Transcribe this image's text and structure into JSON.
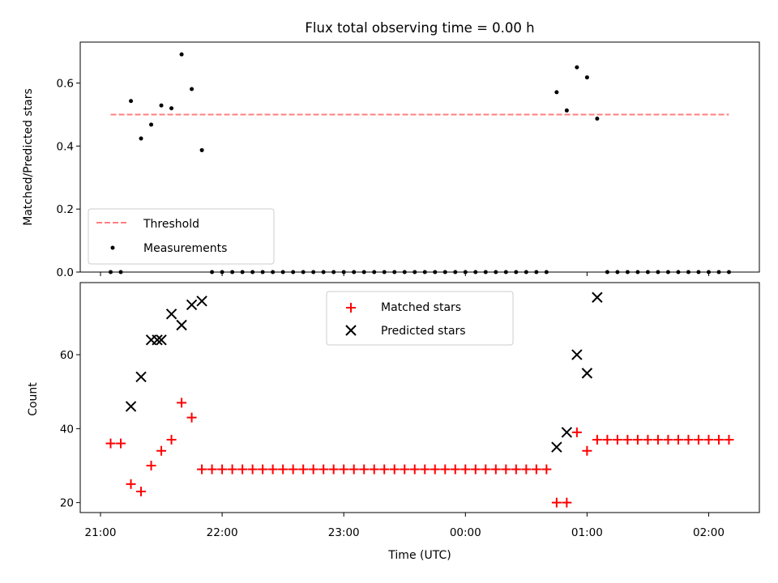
{
  "chart_data": {
    "title": "Flux total observing time = 0.00 h",
    "top": {
      "type": "scatter",
      "ylabel": "Matched/Predicted stars",
      "ylim": [
        0,
        0.73
      ],
      "yticks": [
        0.0,
        0.2,
        0.4,
        0.6
      ],
      "ytick_labels": [
        "0.0",
        "0.2",
        "0.4",
        "0.6"
      ],
      "threshold": {
        "name": "Threshold",
        "value": 0.5,
        "x_start": "21:05",
        "x_end": "02:10",
        "color": "#ff7f7f"
      },
      "measurements": {
        "name": "Measurements",
        "color": "#000000",
        "points": [
          [
            "21:05",
            0.0
          ],
          [
            "21:10",
            0.0
          ],
          [
            "21:15",
            0.543
          ],
          [
            "21:20",
            0.424
          ],
          [
            "21:25",
            0.468
          ],
          [
            "21:30",
            0.529
          ],
          [
            "21:35",
            0.52
          ],
          [
            "21:40",
            0.691
          ],
          [
            "21:45",
            0.581
          ],
          [
            "21:50",
            0.387
          ],
          [
            "21:55",
            0.0
          ],
          [
            "22:00",
            0.0
          ],
          [
            "22:05",
            0.0
          ],
          [
            "22:10",
            0.0
          ],
          [
            "22:15",
            0.0
          ],
          [
            "22:20",
            0.0
          ],
          [
            "22:25",
            0.0
          ],
          [
            "22:30",
            0.0
          ],
          [
            "22:35",
            0.0
          ],
          [
            "22:40",
            0.0
          ],
          [
            "22:45",
            0.0
          ],
          [
            "22:50",
            0.0
          ],
          [
            "22:55",
            0.0
          ],
          [
            "23:00",
            0.0
          ],
          [
            "23:05",
            0.0
          ],
          [
            "23:10",
            0.0
          ],
          [
            "23:15",
            0.0
          ],
          [
            "23:20",
            0.0
          ],
          [
            "23:25",
            0.0
          ],
          [
            "23:30",
            0.0
          ],
          [
            "23:35",
            0.0
          ],
          [
            "23:40",
            0.0
          ],
          [
            "23:45",
            0.0
          ],
          [
            "23:50",
            0.0
          ],
          [
            "23:55",
            0.0
          ],
          [
            "00:00",
            0.0
          ],
          [
            "00:05",
            0.0
          ],
          [
            "00:10",
            0.0
          ],
          [
            "00:15",
            0.0
          ],
          [
            "00:20",
            0.0
          ],
          [
            "00:25",
            0.0
          ],
          [
            "00:30",
            0.0
          ],
          [
            "00:35",
            0.0
          ],
          [
            "00:40",
            0.0
          ],
          [
            "00:45",
            0.571
          ],
          [
            "00:50",
            0.513
          ],
          [
            "00:55",
            0.65
          ],
          [
            "01:00",
            0.618
          ],
          [
            "01:05",
            0.487
          ],
          [
            "01:10",
            0.0
          ],
          [
            "01:15",
            0.0
          ],
          [
            "01:20",
            0.0
          ],
          [
            "01:25",
            0.0
          ],
          [
            "01:30",
            0.0
          ],
          [
            "01:35",
            0.0
          ],
          [
            "01:40",
            0.0
          ],
          [
            "01:45",
            0.0
          ],
          [
            "01:50",
            0.0
          ],
          [
            "01:55",
            0.0
          ],
          [
            "02:00",
            0.0
          ],
          [
            "02:05",
            0.0
          ],
          [
            "02:10",
            0.0
          ]
        ]
      },
      "legend": {
        "placement": "lower-left",
        "entries": [
          "Threshold",
          "Measurements"
        ]
      }
    },
    "bottom": {
      "type": "scatter",
      "ylabel": "Count",
      "xlabel": "Time (UTC)",
      "ylim": [
        17.3,
        79.5
      ],
      "yticks": [
        20,
        40,
        60
      ],
      "ytick_labels": [
        "20",
        "40",
        "60"
      ],
      "xlim": [
        "20:50",
        "02:25"
      ],
      "xticks": [
        "21:00",
        "22:00",
        "23:00",
        "00:00",
        "01:00",
        "02:00"
      ],
      "matched": {
        "name": "Matched stars",
        "color": "#ff0000",
        "points": [
          [
            "21:05",
            36
          ],
          [
            "21:10",
            36
          ],
          [
            "21:15",
            25
          ],
          [
            "21:20",
            23
          ],
          [
            "21:25",
            30
          ],
          [
            "21:30",
            34
          ],
          [
            "21:35",
            37
          ],
          [
            "21:40",
            47
          ],
          [
            "21:45",
            43
          ],
          [
            "21:50",
            29
          ],
          [
            "21:55",
            29
          ],
          [
            "22:00",
            29
          ],
          [
            "22:05",
            29
          ],
          [
            "22:10",
            29
          ],
          [
            "22:15",
            29
          ],
          [
            "22:20",
            29
          ],
          [
            "22:25",
            29
          ],
          [
            "22:30",
            29
          ],
          [
            "22:35",
            29
          ],
          [
            "22:40",
            29
          ],
          [
            "22:45",
            29
          ],
          [
            "22:50",
            29
          ],
          [
            "22:55",
            29
          ],
          [
            "23:00",
            29
          ],
          [
            "23:05",
            29
          ],
          [
            "23:10",
            29
          ],
          [
            "23:15",
            29
          ],
          [
            "23:20",
            29
          ],
          [
            "23:25",
            29
          ],
          [
            "23:30",
            29
          ],
          [
            "23:35",
            29
          ],
          [
            "23:40",
            29
          ],
          [
            "23:45",
            29
          ],
          [
            "23:50",
            29
          ],
          [
            "23:55",
            29
          ],
          [
            "00:00",
            29
          ],
          [
            "00:05",
            29
          ],
          [
            "00:10",
            29
          ],
          [
            "00:15",
            29
          ],
          [
            "00:20",
            29
          ],
          [
            "00:25",
            29
          ],
          [
            "00:30",
            29
          ],
          [
            "00:35",
            29
          ],
          [
            "00:40",
            29
          ],
          [
            "00:45",
            20
          ],
          [
            "00:50",
            20
          ],
          [
            "00:55",
            39
          ],
          [
            "01:00",
            34
          ],
          [
            "01:05",
            37
          ],
          [
            "01:10",
            37
          ],
          [
            "01:15",
            37
          ],
          [
            "01:20",
            37
          ],
          [
            "01:25",
            37
          ],
          [
            "01:30",
            37
          ],
          [
            "01:35",
            37
          ],
          [
            "01:40",
            37
          ],
          [
            "01:45",
            37
          ],
          [
            "01:50",
            37
          ],
          [
            "01:55",
            37
          ],
          [
            "02:00",
            37
          ],
          [
            "02:05",
            37
          ],
          [
            "02:10",
            37
          ]
        ]
      },
      "predicted": {
        "name": "Predicted stars",
        "color": "#000000",
        "points": [
          [
            "21:15",
            46
          ],
          [
            "21:20",
            54
          ],
          [
            "21:25",
            64
          ],
          [
            "21:28",
            64
          ],
          [
            "21:30",
            64
          ],
          [
            "21:35",
            71
          ],
          [
            "21:40",
            68
          ],
          [
            "21:45",
            73.5
          ],
          [
            "21:50",
            74.5
          ],
          [
            "00:45",
            35
          ],
          [
            "00:50",
            39
          ],
          [
            "00:55",
            60
          ],
          [
            "01:00",
            55
          ],
          [
            "01:05",
            75.5
          ]
        ]
      },
      "legend": {
        "placement": "top-center",
        "entries": [
          "Matched stars",
          "Predicted stars"
        ]
      }
    }
  }
}
